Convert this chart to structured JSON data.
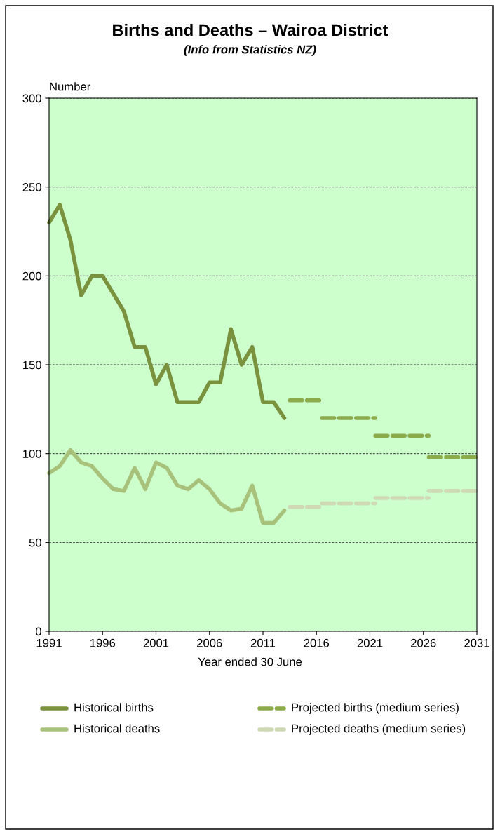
{
  "chart_data": {
    "type": "line",
    "title": "Births and Deaths – Wairoa District",
    "subtitle": "(Info from Statistics NZ)",
    "xlabel": "Year ended 30 June",
    "ylabel": "Number",
    "xlim": [
      1991,
      2031
    ],
    "xticks": [
      1991,
      1996,
      2001,
      2006,
      2011,
      2016,
      2021,
      2026,
      2031
    ],
    "ylim": [
      0,
      300
    ],
    "yticks": [
      0,
      50,
      100,
      150,
      200,
      250,
      300
    ],
    "grid": "y",
    "legend": "bottom",
    "series": [
      {
        "name": "Historical births",
        "color": "#7a913e",
        "line_style": "solid",
        "x": [
          1991,
          1992,
          1993,
          1994,
          1995,
          1996,
          1997,
          1998,
          1999,
          2000,
          2001,
          2002,
          2003,
          2004,
          2005,
          2006,
          2007,
          2008,
          2009,
          2010,
          2011,
          2012,
          2013
        ],
        "values": [
          230,
          240,
          220,
          189,
          200,
          200,
          190,
          180,
          160,
          160,
          139,
          150,
          129,
          129,
          129,
          140,
          140,
          170,
          150,
          160,
          129,
          129,
          120
        ]
      },
      {
        "name": "Historical deaths",
        "color": "#a9c27b",
        "line_style": "solid",
        "x": [
          1991,
          1992,
          1993,
          1994,
          1995,
          1996,
          1997,
          1998,
          1999,
          2000,
          2001,
          2002,
          2003,
          2004,
          2005,
          2006,
          2007,
          2008,
          2009,
          2010,
          2011,
          2012,
          2013
        ],
        "values": [
          89,
          93,
          102,
          95,
          93,
          86,
          80,
          79,
          92,
          80,
          95,
          92,
          82,
          80,
          85,
          80,
          72,
          68,
          69,
          82,
          61,
          61,
          68
        ]
      },
      {
        "name": "Projected births (medium series)",
        "color": "#8cab4a",
        "line_style": "dashed",
        "x": [
          2013.5,
          2016.5,
          null,
          2016.5,
          2021.5,
          null,
          2021.5,
          2026.5,
          null,
          2026.5,
          2031
        ],
        "values": [
          130,
          130,
          null,
          120,
          120,
          null,
          110,
          110,
          null,
          98,
          98
        ]
      },
      {
        "name": "Projected deaths (medium series)",
        "color": "#cfdab4",
        "line_style": "dashed",
        "x": [
          2013.5,
          2016.5,
          null,
          2016.5,
          2021.5,
          null,
          2021.5,
          2026.5,
          null,
          2026.5,
          2031
        ],
        "values": [
          70,
          70,
          null,
          72,
          72,
          null,
          75,
          75,
          null,
          79,
          79
        ]
      }
    ]
  }
}
